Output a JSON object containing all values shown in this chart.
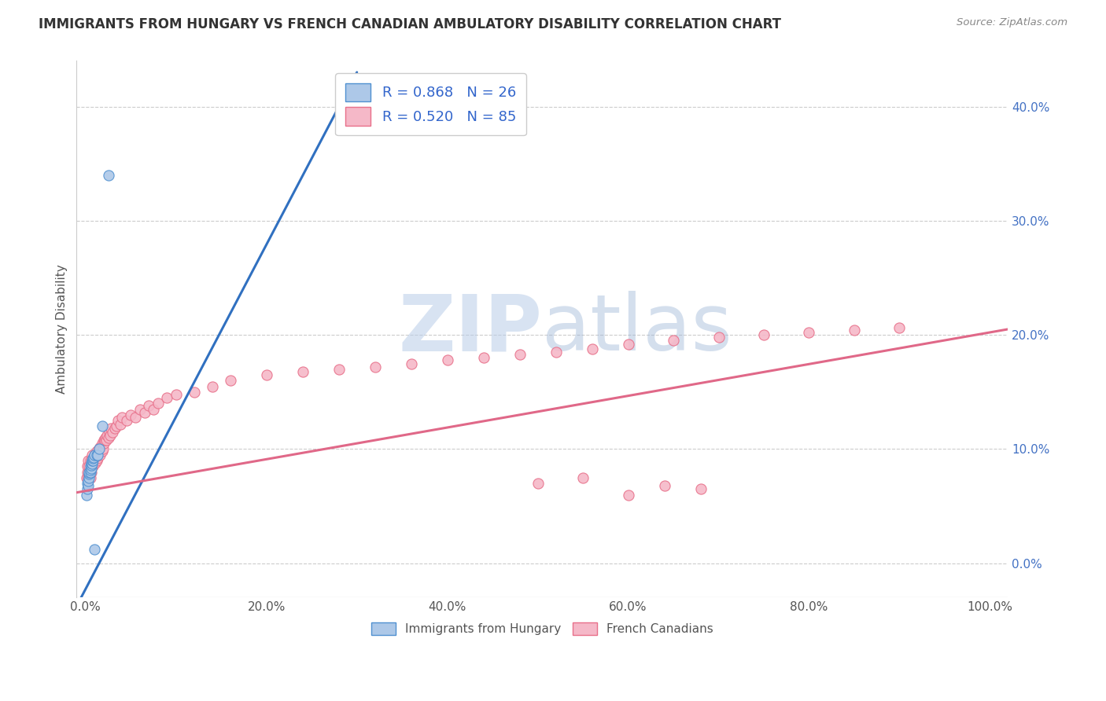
{
  "title": "IMMIGRANTS FROM HUNGARY VS FRENCH CANADIAN AMBULATORY DISABILITY CORRELATION CHART",
  "source": "Source: ZipAtlas.com",
  "ylabel": "Ambulatory Disability",
  "xlim": [
    -0.01,
    1.02
  ],
  "ylim": [
    -0.03,
    0.44
  ],
  "x_tick_labels": [
    "0.0%",
    "20.0%",
    "40.0%",
    "60.0%",
    "80.0%",
    "100.0%"
  ],
  "x_tick_vals": [
    0.0,
    0.2,
    0.4,
    0.6,
    0.8,
    1.0
  ],
  "y_tick_labels": [
    "0.0%",
    "10.0%",
    "20.0%",
    "30.0%",
    "40.0%"
  ],
  "y_tick_vals": [
    0.0,
    0.1,
    0.2,
    0.3,
    0.4
  ],
  "watermark_zip": "ZIP",
  "watermark_atlas": "atlas",
  "legend_R1": "R = 0.868",
  "legend_N1": "N = 26",
  "legend_R2": "R = 0.520",
  "legend_N2": "N = 85",
  "color_hungary_fill": "#adc8e8",
  "color_hungary_edge": "#5090d0",
  "color_french_fill": "#f5b8c8",
  "color_french_edge": "#e8708a",
  "color_hungary_line": "#3070c0",
  "color_french_line": "#e06888",
  "hungary_x": [
    0.001,
    0.002,
    0.002,
    0.003,
    0.003,
    0.004,
    0.004,
    0.004,
    0.005,
    0.005,
    0.005,
    0.006,
    0.006,
    0.006,
    0.007,
    0.007,
    0.008,
    0.008,
    0.009,
    0.01,
    0.01,
    0.012,
    0.013,
    0.015,
    0.018,
    0.025
  ],
  "hungary_y": [
    0.06,
    0.065,
    0.07,
    0.068,
    0.072,
    0.075,
    0.078,
    0.08,
    0.08,
    0.082,
    0.085,
    0.083,
    0.086,
    0.088,
    0.087,
    0.09,
    0.09,
    0.092,
    0.093,
    0.095,
    0.012,
    0.095,
    0.095,
    0.1,
    0.12,
    0.34
  ],
  "french_x": [
    0.001,
    0.002,
    0.002,
    0.003,
    0.003,
    0.004,
    0.004,
    0.005,
    0.005,
    0.006,
    0.006,
    0.007,
    0.007,
    0.008,
    0.008,
    0.009,
    0.009,
    0.01,
    0.01,
    0.011,
    0.011,
    0.012,
    0.012,
    0.013,
    0.013,
    0.014,
    0.015,
    0.015,
    0.016,
    0.016,
    0.017,
    0.018,
    0.018,
    0.019,
    0.02,
    0.02,
    0.021,
    0.022,
    0.023,
    0.024,
    0.025,
    0.026,
    0.027,
    0.028,
    0.03,
    0.032,
    0.034,
    0.036,
    0.038,
    0.04,
    0.045,
    0.05,
    0.055,
    0.06,
    0.065,
    0.07,
    0.075,
    0.08,
    0.09,
    0.1,
    0.12,
    0.14,
    0.16,
    0.2,
    0.24,
    0.28,
    0.32,
    0.36,
    0.4,
    0.44,
    0.48,
    0.52,
    0.56,
    0.6,
    0.65,
    0.7,
    0.75,
    0.8,
    0.85,
    0.9,
    0.5,
    0.55,
    0.6,
    0.64,
    0.68
  ],
  "french_y": [
    0.075,
    0.08,
    0.085,
    0.075,
    0.09,
    0.08,
    0.085,
    0.075,
    0.09,
    0.08,
    0.085,
    0.09,
    0.095,
    0.085,
    0.09,
    0.088,
    0.092,
    0.09,
    0.095,
    0.088,
    0.095,
    0.09,
    0.098,
    0.092,
    0.096,
    0.095,
    0.098,
    0.1,
    0.095,
    0.102,
    0.1,
    0.098,
    0.105,
    0.1,
    0.108,
    0.105,
    0.108,
    0.11,
    0.108,
    0.112,
    0.11,
    0.115,
    0.112,
    0.118,
    0.115,
    0.118,
    0.12,
    0.125,
    0.122,
    0.128,
    0.125,
    0.13,
    0.128,
    0.135,
    0.132,
    0.138,
    0.135,
    0.14,
    0.145,
    0.148,
    0.15,
    0.155,
    0.16,
    0.165,
    0.168,
    0.17,
    0.172,
    0.175,
    0.178,
    0.18,
    0.183,
    0.185,
    0.188,
    0.192,
    0.195,
    0.198,
    0.2,
    0.202,
    0.204,
    0.206,
    0.07,
    0.075,
    0.06,
    0.068,
    0.065
  ],
  "hungary_line_x": [
    -0.005,
    0.3
  ],
  "hungary_line_y": [
    -0.03,
    0.43
  ],
  "french_line_x": [
    -0.01,
    1.02
  ],
  "french_line_y": [
    0.062,
    0.205
  ]
}
